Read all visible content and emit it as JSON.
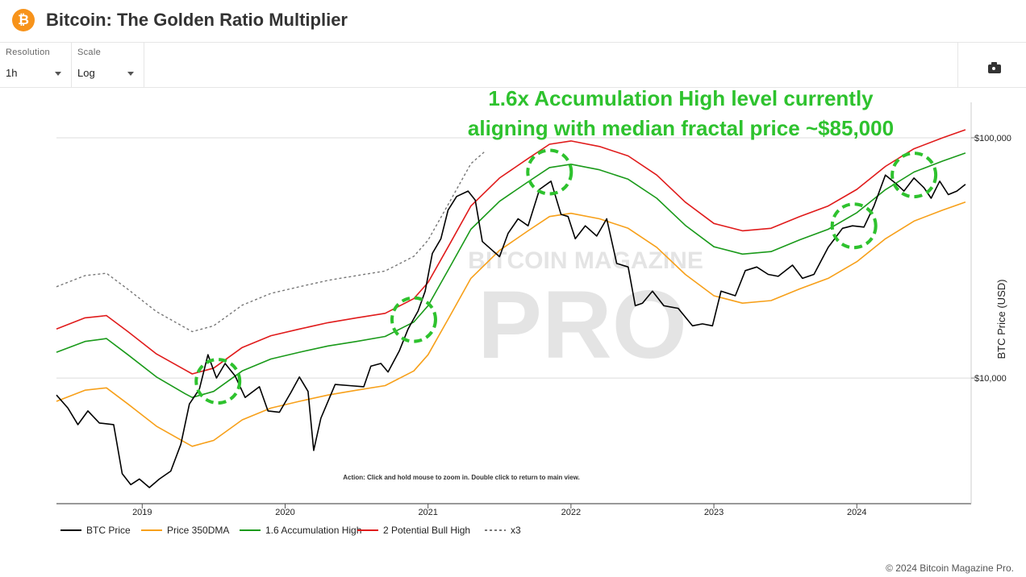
{
  "header": {
    "logo_glyph": "₿",
    "title": "Bitcoin: The Golden Ratio Multiplier"
  },
  "toolbar": {
    "resolution": {
      "label": "Resolution",
      "value": "1h"
    },
    "scale": {
      "label": "Scale",
      "value": "Log"
    },
    "camera_icon": "camera-icon"
  },
  "annotation": {
    "line1": "1.6x Accumulation High level currently",
    "line2": "aligning with median fractal price ~$85,000",
    "color": "#2ec22e"
  },
  "hint": "Action: Click and hold mouse to zoom in.  Double click to return to main view.",
  "watermark": {
    "line1": "BITCOIN MAGAZINE",
    "line2": "PRO"
  },
  "footer": "© 2024 Bitcoin Magazine Pro.",
  "chart_data": {
    "type": "line",
    "ylabel": "BTC Price (USD)",
    "yscale": "log",
    "ylim": [
      3000,
      130000
    ],
    "xlim": [
      2018.4,
      2024.8
    ],
    "y_ticks": [
      {
        "value": 10000,
        "label": "$10,000"
      },
      {
        "value": 100000,
        "label": "$100,000"
      }
    ],
    "x_ticks": [
      {
        "value": 2019.0,
        "label": "2019"
      },
      {
        "value": 2020.0,
        "label": "2020"
      },
      {
        "value": 2021.0,
        "label": "2021"
      },
      {
        "value": 2022.0,
        "label": "2022"
      },
      {
        "value": 2023.0,
        "label": "2023"
      },
      {
        "value": 2024.0,
        "label": "2024"
      }
    ],
    "legend_position": "bottom-left",
    "series": [
      {
        "name": "BTC Price",
        "color": "#000000",
        "dash": false,
        "width": 1.6,
        "points": [
          [
            2018.4,
            8500
          ],
          [
            2018.48,
            7500
          ],
          [
            2018.55,
            6400
          ],
          [
            2018.62,
            7300
          ],
          [
            2018.7,
            6500
          ],
          [
            2018.8,
            6400
          ],
          [
            2018.86,
            4000
          ],
          [
            2018.92,
            3600
          ],
          [
            2018.98,
            3800
          ],
          [
            2019.05,
            3500
          ],
          [
            2019.12,
            3800
          ],
          [
            2019.2,
            4100
          ],
          [
            2019.27,
            5300
          ],
          [
            2019.33,
            7800
          ],
          [
            2019.4,
            9000
          ],
          [
            2019.46,
            12500
          ],
          [
            2019.52,
            10000
          ],
          [
            2019.58,
            11500
          ],
          [
            2019.65,
            10200
          ],
          [
            2019.72,
            8300
          ],
          [
            2019.82,
            9200
          ],
          [
            2019.88,
            7300
          ],
          [
            2019.96,
            7200
          ],
          [
            2020.04,
            8700
          ],
          [
            2020.1,
            10100
          ],
          [
            2020.16,
            8800
          ],
          [
            2020.2,
            5000
          ],
          [
            2020.25,
            6800
          ],
          [
            2020.35,
            9400
          ],
          [
            2020.45,
            9300
          ],
          [
            2020.55,
            9200
          ],
          [
            2020.6,
            11200
          ],
          [
            2020.67,
            11500
          ],
          [
            2020.72,
            10600
          ],
          [
            2020.8,
            13000
          ],
          [
            2020.86,
            16000
          ],
          [
            2020.93,
            19000
          ],
          [
            2020.98,
            23000
          ],
          [
            2021.03,
            33000
          ],
          [
            2021.09,
            38000
          ],
          [
            2021.14,
            50000
          ],
          [
            2021.2,
            57000
          ],
          [
            2021.28,
            60000
          ],
          [
            2021.33,
            55000
          ],
          [
            2021.38,
            37000
          ],
          [
            2021.45,
            34000
          ],
          [
            2021.5,
            32000
          ],
          [
            2021.56,
            40000
          ],
          [
            2021.63,
            46000
          ],
          [
            2021.7,
            43000
          ],
          [
            2021.78,
            61000
          ],
          [
            2021.86,
            66000
          ],
          [
            2021.93,
            48000
          ],
          [
            2021.98,
            47000
          ],
          [
            2022.03,
            38000
          ],
          [
            2022.1,
            43000
          ],
          [
            2022.18,
            39000
          ],
          [
            2022.25,
            46000
          ],
          [
            2022.32,
            30000
          ],
          [
            2022.4,
            29000
          ],
          [
            2022.45,
            20000
          ],
          [
            2022.5,
            20500
          ],
          [
            2022.57,
            23000
          ],
          [
            2022.65,
            20000
          ],
          [
            2022.75,
            19500
          ],
          [
            2022.85,
            16500
          ],
          [
            2022.92,
            16800
          ],
          [
            2022.99,
            16500
          ],
          [
            2023.05,
            23000
          ],
          [
            2023.15,
            22000
          ],
          [
            2023.22,
            28000
          ],
          [
            2023.3,
            29000
          ],
          [
            2023.38,
            27000
          ],
          [
            2023.45,
            26500
          ],
          [
            2023.55,
            29500
          ],
          [
            2023.62,
            26000
          ],
          [
            2023.7,
            27000
          ],
          [
            2023.8,
            35000
          ],
          [
            2023.9,
            42000
          ],
          [
            2023.97,
            43000
          ],
          [
            2024.05,
            42500
          ],
          [
            2024.12,
            52000
          ],
          [
            2024.2,
            70000
          ],
          [
            2024.28,
            64000
          ],
          [
            2024.33,
            60000
          ],
          [
            2024.4,
            68000
          ],
          [
            2024.47,
            62000
          ],
          [
            2024.52,
            56000
          ],
          [
            2024.58,
            66000
          ],
          [
            2024.64,
            58000
          ],
          [
            2024.7,
            60000
          ],
          [
            2024.76,
            64000
          ]
        ]
      },
      {
        "name": "Price 350DMA",
        "color": "#f7a01a",
        "dash": false,
        "width": 1.6,
        "points": [
          [
            2018.4,
            8000
          ],
          [
            2018.6,
            8900
          ],
          [
            2018.75,
            9100
          ],
          [
            2018.9,
            7800
          ],
          [
            2019.1,
            6300
          ],
          [
            2019.3,
            5400
          ],
          [
            2019.35,
            5200
          ],
          [
            2019.5,
            5500
          ],
          [
            2019.7,
            6700
          ],
          [
            2019.9,
            7500
          ],
          [
            2020.1,
            8000
          ],
          [
            2020.3,
            8500
          ],
          [
            2020.5,
            8900
          ],
          [
            2020.7,
            9300
          ],
          [
            2020.9,
            10700
          ],
          [
            2021.0,
            12500
          ],
          [
            2021.15,
            18000
          ],
          [
            2021.3,
            26000
          ],
          [
            2021.5,
            34000
          ],
          [
            2021.7,
            41000
          ],
          [
            2021.85,
            47000
          ],
          [
            2022.0,
            48500
          ],
          [
            2022.2,
            46000
          ],
          [
            2022.4,
            42000
          ],
          [
            2022.6,
            35000
          ],
          [
            2022.8,
            27000
          ],
          [
            2023.0,
            22000
          ],
          [
            2023.2,
            20500
          ],
          [
            2023.4,
            21000
          ],
          [
            2023.6,
            23500
          ],
          [
            2023.8,
            26000
          ],
          [
            2024.0,
            30500
          ],
          [
            2024.2,
            38000
          ],
          [
            2024.4,
            45000
          ],
          [
            2024.6,
            50000
          ],
          [
            2024.76,
            54000
          ]
        ]
      },
      {
        "name": "1.6 Accumulation High",
        "color": "#1a9a1a",
        "dash": false,
        "width": 1.6,
        "points": [
          [
            2018.4,
            12800
          ],
          [
            2018.6,
            14200
          ],
          [
            2018.75,
            14600
          ],
          [
            2018.9,
            12500
          ],
          [
            2019.1,
            10100
          ],
          [
            2019.3,
            8600
          ],
          [
            2019.35,
            8300
          ],
          [
            2019.5,
            8800
          ],
          [
            2019.7,
            10700
          ],
          [
            2019.9,
            12000
          ],
          [
            2020.1,
            12800
          ],
          [
            2020.3,
            13600
          ],
          [
            2020.5,
            14200
          ],
          [
            2020.7,
            14900
          ],
          [
            2020.9,
            17100
          ],
          [
            2021.0,
            20000
          ],
          [
            2021.15,
            28800
          ],
          [
            2021.3,
            41600
          ],
          [
            2021.5,
            54400
          ],
          [
            2021.7,
            65600
          ],
          [
            2021.85,
            75200
          ],
          [
            2022.0,
            77600
          ],
          [
            2022.2,
            73600
          ],
          [
            2022.4,
            67200
          ],
          [
            2022.6,
            56000
          ],
          [
            2022.8,
            43200
          ],
          [
            2023.0,
            35200
          ],
          [
            2023.2,
            32800
          ],
          [
            2023.4,
            33600
          ],
          [
            2023.6,
            37600
          ],
          [
            2023.8,
            41600
          ],
          [
            2024.0,
            48800
          ],
          [
            2024.2,
            60800
          ],
          [
            2024.4,
            72000
          ],
          [
            2024.6,
            80000
          ],
          [
            2024.76,
            86400
          ]
        ]
      },
      {
        "name": "2 Potential Bull High",
        "color": "#e01b1b",
        "dash": false,
        "width": 1.6,
        "points": [
          [
            2018.4,
            16000
          ],
          [
            2018.6,
            17800
          ],
          [
            2018.75,
            18200
          ],
          [
            2018.9,
            15600
          ],
          [
            2019.1,
            12600
          ],
          [
            2019.3,
            10800
          ],
          [
            2019.35,
            10400
          ],
          [
            2019.5,
            11000
          ],
          [
            2019.7,
            13400
          ],
          [
            2019.9,
            15000
          ],
          [
            2020.1,
            16000
          ],
          [
            2020.3,
            17000
          ],
          [
            2020.5,
            17800
          ],
          [
            2020.7,
            18600
          ],
          [
            2020.9,
            21400
          ],
          [
            2021.0,
            25000
          ],
          [
            2021.15,
            36000
          ],
          [
            2021.3,
            52000
          ],
          [
            2021.5,
            68000
          ],
          [
            2021.7,
            82000
          ],
          [
            2021.85,
            94000
          ],
          [
            2022.0,
            97000
          ],
          [
            2022.2,
            92000
          ],
          [
            2022.4,
            84000
          ],
          [
            2022.6,
            70000
          ],
          [
            2022.8,
            54000
          ],
          [
            2023.0,
            44000
          ],
          [
            2023.2,
            41000
          ],
          [
            2023.4,
            42000
          ],
          [
            2023.6,
            47000
          ],
          [
            2023.8,
            52000
          ],
          [
            2024.0,
            61000
          ],
          [
            2024.2,
            76000
          ],
          [
            2024.4,
            90000
          ],
          [
            2024.6,
            100000
          ],
          [
            2024.76,
            108000
          ]
        ]
      },
      {
        "name": "x3",
        "color": "#777777",
        "dash": true,
        "width": 1.4,
        "points": [
          [
            2018.4,
            24000
          ],
          [
            2018.6,
            26700
          ],
          [
            2018.75,
            27300
          ],
          [
            2018.9,
            23400
          ],
          [
            2019.1,
            18900
          ],
          [
            2019.3,
            16200
          ],
          [
            2019.35,
            15600
          ],
          [
            2019.5,
            16500
          ],
          [
            2019.7,
            20100
          ],
          [
            2019.9,
            22500
          ],
          [
            2020.1,
            24000
          ],
          [
            2020.3,
            25500
          ],
          [
            2020.5,
            26700
          ],
          [
            2020.7,
            27900
          ],
          [
            2020.9,
            32100
          ],
          [
            2021.0,
            37500
          ],
          [
            2021.15,
            54000
          ],
          [
            2021.3,
            78000
          ],
          [
            2021.4,
            88000
          ]
        ]
      }
    ],
    "markers": [
      {
        "name": "marker-2019-peak",
        "cx": 2019.53,
        "cy": 9700,
        "color": "#2ec22e"
      },
      {
        "name": "marker-2021-breakout",
        "cx": 2020.9,
        "cy": 17500,
        "color": "#2ec22e"
      },
      {
        "name": "marker-2021-top",
        "cx": 2021.85,
        "cy": 72000,
        "color": "#2ec22e"
      },
      {
        "name": "marker-2024-rise",
        "cx": 2023.98,
        "cy": 43000,
        "color": "#2ec22e"
      },
      {
        "name": "marker-2024-top",
        "cx": 2024.4,
        "cy": 70000,
        "color": "#2ec22e"
      }
    ]
  }
}
